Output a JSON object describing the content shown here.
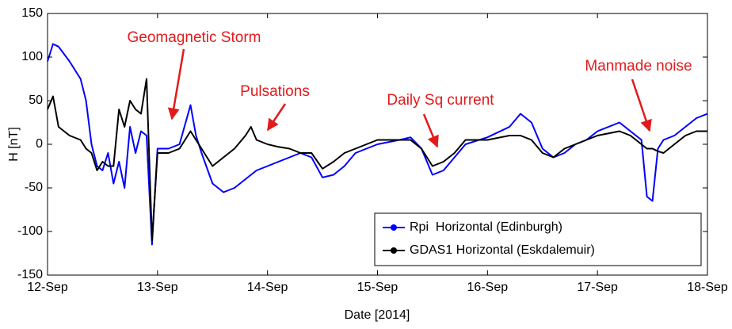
{
  "chart_data": {
    "type": "line",
    "xlabel": "Date [2014]",
    "ylabel": "H [nT]",
    "x": [
      12.0,
      12.05,
      12.1,
      12.2,
      12.3,
      12.35,
      12.4,
      12.45,
      12.5,
      12.55,
      12.6,
      12.65,
      12.7,
      12.75,
      12.8,
      12.85,
      12.9,
      12.95,
      13.0,
      13.1,
      13.2,
      13.3,
      13.35,
      13.4,
      13.5,
      13.6,
      13.7,
      13.8,
      13.85,
      13.9,
      14.0,
      14.1,
      14.2,
      14.3,
      14.4,
      14.5,
      14.6,
      14.7,
      14.8,
      14.9,
      15.0,
      15.2,
      15.3,
      15.4,
      15.5,
      15.6,
      15.7,
      15.8,
      16.0,
      16.2,
      16.3,
      16.4,
      16.5,
      16.6,
      16.7,
      16.8,
      16.9,
      17.0,
      17.2,
      17.3,
      17.4,
      17.45,
      17.5,
      17.55,
      17.6,
      17.7,
      17.8,
      17.9,
      18.0
    ],
    "series": [
      {
        "name": "Rpi  Horizontal (Edinburgh)",
        "color": "#0000ff",
        "values": [
          95,
          115,
          112,
          95,
          75,
          50,
          0,
          -25,
          -30,
          -10,
          -45,
          -20,
          -50,
          20,
          -10,
          15,
          10,
          -115,
          -5,
          -5,
          0,
          45,
          10,
          -10,
          -45,
          -55,
          -50,
          -40,
          -35,
          -30,
          -25,
          -20,
          -15,
          -10,
          -15,
          -38,
          -35,
          -25,
          -10,
          -5,
          0,
          5,
          8,
          -5,
          -35,
          -30,
          -15,
          0,
          8,
          20,
          35,
          25,
          -5,
          -15,
          -10,
          0,
          5,
          15,
          25,
          15,
          5,
          -60,
          -65,
          -5,
          5,
          10,
          20,
          30,
          35
        ]
      },
      {
        "name": "GDAS1 Horizontal (Eskdalemuir)",
        "color": "#000000",
        "values": [
          40,
          55,
          20,
          10,
          5,
          -5,
          -10,
          -30,
          -20,
          -25,
          -25,
          40,
          20,
          50,
          40,
          35,
          75,
          -110,
          -10,
          -10,
          -5,
          15,
          5,
          -5,
          -25,
          -15,
          -5,
          10,
          20,
          5,
          0,
          -3,
          -5,
          -10,
          -10,
          -28,
          -20,
          -10,
          -5,
          0,
          5,
          5,
          5,
          -5,
          -25,
          -20,
          -10,
          5,
          5,
          10,
          10,
          5,
          -10,
          -15,
          -5,
          0,
          5,
          10,
          15,
          10,
          0,
          -5,
          -5,
          -8,
          -10,
          0,
          10,
          15,
          15
        ]
      }
    ],
    "xlim": [
      12,
      18
    ],
    "xticks": [
      {
        "value": 12,
        "label": "12-Sep"
      },
      {
        "value": 13,
        "label": "13-Sep"
      },
      {
        "value": 14,
        "label": "14-Sep"
      },
      {
        "value": 15,
        "label": "15-Sep"
      },
      {
        "value": 16,
        "label": "16-Sep"
      },
      {
        "value": 17,
        "label": "17-Sep"
      },
      {
        "value": 18,
        "label": "18-Sep"
      }
    ],
    "ylim": [
      -150,
      150
    ],
    "yticks": [
      -150,
      -100,
      -50,
      0,
      50,
      100,
      150
    ],
    "legend": "lower right",
    "annotations": [
      "Geomagnetic Storm",
      "Pulsations",
      "Daily Sq current",
      "Manmade noise"
    ]
  }
}
